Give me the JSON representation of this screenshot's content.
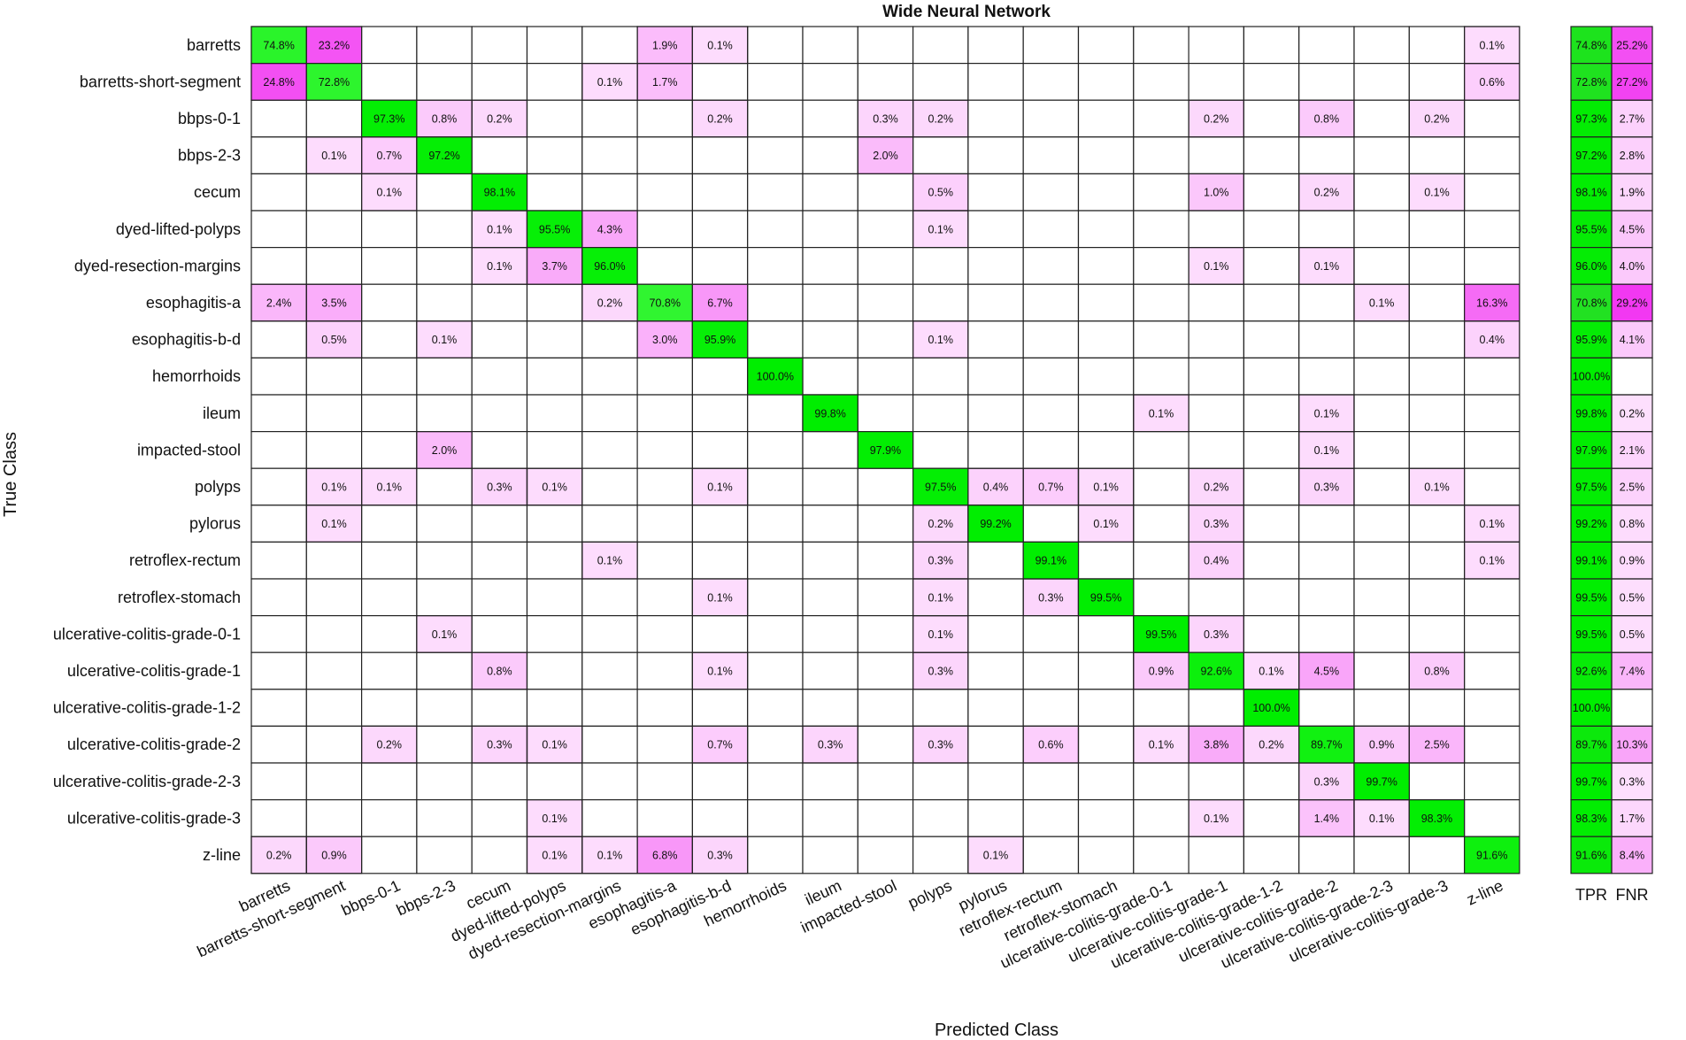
{
  "chart_data": {
    "type": "heatmap",
    "title": "Wide Neural Network",
    "xlabel": "Predicted Class",
    "ylabel": "True Class",
    "classes": [
      "barretts",
      "barretts-short-segment",
      "bbps-0-1",
      "bbps-2-3",
      "cecum",
      "dyed-lifted-polyps",
      "dyed-resection-margins",
      "esophagitis-a",
      "esophagitis-b-d",
      "hemorrhoids",
      "ileum",
      "impacted-stool",
      "polyps",
      "pylorus",
      "retroflex-rectum",
      "retroflex-stomach",
      "ulcerative-colitis-grade-0-1",
      "ulcerative-colitis-grade-1",
      "ulcerative-colitis-grade-1-2",
      "ulcerative-colitis-grade-2",
      "ulcerative-colitis-grade-2-3",
      "ulcerative-colitis-grade-3",
      "z-line"
    ],
    "cells": [
      [
        [
          0,
          "74.8%"
        ],
        [
          1,
          "23.2%"
        ],
        [
          7,
          "1.9%"
        ],
        [
          8,
          "0.1%"
        ],
        [
          22,
          "0.1%"
        ]
      ],
      [
        [
          0,
          "24.8%"
        ],
        [
          1,
          "72.8%"
        ],
        [
          6,
          "0.1%"
        ],
        [
          7,
          "1.7%"
        ],
        [
          22,
          "0.6%"
        ]
      ],
      [
        [
          2,
          "97.3%"
        ],
        [
          3,
          "0.8%"
        ],
        [
          4,
          "0.2%"
        ],
        [
          8,
          "0.2%"
        ],
        [
          11,
          "0.3%"
        ],
        [
          12,
          "0.2%"
        ],
        [
          17,
          "0.2%"
        ],
        [
          19,
          "0.8%"
        ],
        [
          21,
          "0.2%"
        ]
      ],
      [
        [
          1,
          "0.1%"
        ],
        [
          2,
          "0.7%"
        ],
        [
          3,
          "97.2%"
        ],
        [
          11,
          "2.0%"
        ]
      ],
      [
        [
          2,
          "0.1%"
        ],
        [
          4,
          "98.1%"
        ],
        [
          12,
          "0.5%"
        ],
        [
          17,
          "1.0%"
        ],
        [
          19,
          "0.2%"
        ],
        [
          21,
          "0.1%"
        ]
      ],
      [
        [
          4,
          "0.1%"
        ],
        [
          5,
          "95.5%"
        ],
        [
          6,
          "4.3%"
        ],
        [
          12,
          "0.1%"
        ]
      ],
      [
        [
          4,
          "0.1%"
        ],
        [
          5,
          "3.7%"
        ],
        [
          6,
          "96.0%"
        ],
        [
          17,
          "0.1%"
        ],
        [
          19,
          "0.1%"
        ]
      ],
      [
        [
          0,
          "2.4%"
        ],
        [
          1,
          "3.5%"
        ],
        [
          6,
          "0.2%"
        ],
        [
          7,
          "70.8%"
        ],
        [
          8,
          "6.7%"
        ],
        [
          20,
          "0.1%"
        ],
        [
          22,
          "16.3%"
        ]
      ],
      [
        [
          1,
          "0.5%"
        ],
        [
          3,
          "0.1%"
        ],
        [
          7,
          "3.0%"
        ],
        [
          8,
          "95.9%"
        ],
        [
          12,
          "0.1%"
        ],
        [
          22,
          "0.4%"
        ]
      ],
      [
        [
          9,
          "100.0%"
        ]
      ],
      [
        [
          10,
          "99.8%"
        ],
        [
          16,
          "0.1%"
        ],
        [
          19,
          "0.1%"
        ]
      ],
      [
        [
          3,
          "2.0%"
        ],
        [
          11,
          "97.9%"
        ],
        [
          19,
          "0.1%"
        ]
      ],
      [
        [
          1,
          "0.1%"
        ],
        [
          2,
          "0.1%"
        ],
        [
          4,
          "0.3%"
        ],
        [
          5,
          "0.1%"
        ],
        [
          8,
          "0.1%"
        ],
        [
          12,
          "97.5%"
        ],
        [
          13,
          "0.4%"
        ],
        [
          14,
          "0.7%"
        ],
        [
          15,
          "0.1%"
        ],
        [
          17,
          "0.2%"
        ],
        [
          19,
          "0.3%"
        ],
        [
          21,
          "0.1%"
        ]
      ],
      [
        [
          1,
          "0.1%"
        ],
        [
          12,
          "0.2%"
        ],
        [
          13,
          "99.2%"
        ],
        [
          15,
          "0.1%"
        ],
        [
          17,
          "0.3%"
        ],
        [
          22,
          "0.1%"
        ]
      ],
      [
        [
          6,
          "0.1%"
        ],
        [
          12,
          "0.3%"
        ],
        [
          14,
          "99.1%"
        ],
        [
          17,
          "0.4%"
        ],
        [
          22,
          "0.1%"
        ]
      ],
      [
        [
          8,
          "0.1%"
        ],
        [
          12,
          "0.1%"
        ],
        [
          14,
          "0.3%"
        ],
        [
          15,
          "99.5%"
        ]
      ],
      [
        [
          3,
          "0.1%"
        ],
        [
          12,
          "0.1%"
        ],
        [
          16,
          "99.5%"
        ],
        [
          17,
          "0.3%"
        ]
      ],
      [
        [
          4,
          "0.8%"
        ],
        [
          8,
          "0.1%"
        ],
        [
          12,
          "0.3%"
        ],
        [
          16,
          "0.9%"
        ],
        [
          17,
          "92.6%"
        ],
        [
          18,
          "0.1%"
        ],
        [
          19,
          "4.5%"
        ],
        [
          21,
          "0.8%"
        ]
      ],
      [
        [
          18,
          "100.0%"
        ]
      ],
      [
        [
          2,
          "0.2%"
        ],
        [
          4,
          "0.3%"
        ],
        [
          5,
          "0.1%"
        ],
        [
          8,
          "0.7%"
        ],
        [
          10,
          "0.3%"
        ],
        [
          12,
          "0.3%"
        ],
        [
          14,
          "0.6%"
        ],
        [
          16,
          "0.1%"
        ],
        [
          17,
          "3.8%"
        ],
        [
          18,
          "0.2%"
        ],
        [
          19,
          "89.7%"
        ],
        [
          20,
          "0.9%"
        ],
        [
          21,
          "2.5%"
        ]
      ],
      [
        [
          19,
          "0.3%"
        ],
        [
          20,
          "99.7%"
        ]
      ],
      [
        [
          5,
          "0.1%"
        ],
        [
          17,
          "0.1%"
        ],
        [
          19,
          "1.4%"
        ],
        [
          20,
          "0.1%"
        ],
        [
          21,
          "98.3%"
        ]
      ],
      [
        [
          0,
          "0.2%"
        ],
        [
          1,
          "0.9%"
        ],
        [
          5,
          "0.1%"
        ],
        [
          6,
          "0.1%"
        ],
        [
          7,
          "6.8%"
        ],
        [
          8,
          "0.3%"
        ],
        [
          13,
          "0.1%"
        ],
        [
          22,
          "91.6%"
        ]
      ]
    ],
    "summary_headers": [
      "TPR",
      "FNR"
    ],
    "tpr": [
      "74.8%",
      "72.8%",
      "97.3%",
      "97.2%",
      "98.1%",
      "95.5%",
      "96.0%",
      "70.8%",
      "95.9%",
      "100.0%",
      "99.8%",
      "97.9%",
      "97.5%",
      "99.2%",
      "99.1%",
      "99.5%",
      "99.5%",
      "92.6%",
      "100.0%",
      "89.7%",
      "99.7%",
      "98.3%",
      "91.6%"
    ],
    "fnr": [
      "25.2%",
      "27.2%",
      "2.7%",
      "2.8%",
      "1.9%",
      "4.5%",
      "4.0%",
      "29.2%",
      "4.1%",
      "",
      "0.2%",
      "2.1%",
      "2.5%",
      "0.8%",
      "0.9%",
      "0.5%",
      "0.5%",
      "7.4%",
      "",
      "10.3%",
      "0.3%",
      "1.7%",
      "8.4%"
    ],
    "colors": {
      "correct": "#00ee00",
      "incorrect": "#ee00ee",
      "grid": "#222222",
      "background": "#ffffff"
    }
  }
}
